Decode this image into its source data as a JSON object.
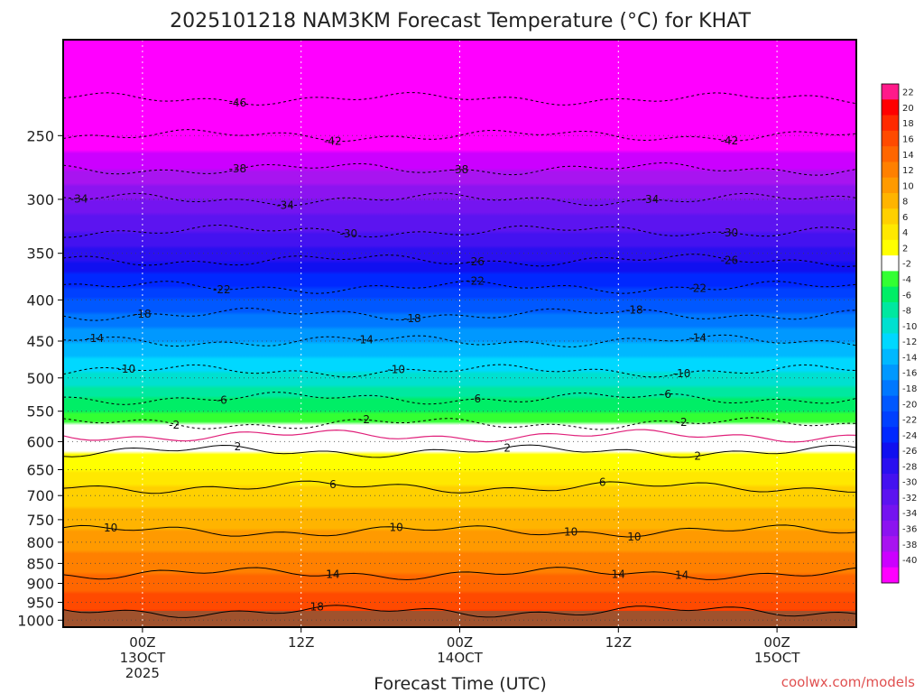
{
  "chart_data": {
    "type": "heatmap",
    "title": "2025101218 NAM3KM Forecast Temperature (°C) for KHAT",
    "xlabel": "Forecast Time (UTC)",
    "ylabel": "",
    "credit": "coolwx.com/models",
    "y_axis": {
      "units": "hPa",
      "ticks": [
        250,
        300,
        350,
        400,
        450,
        500,
        550,
        600,
        650,
        700,
        750,
        800,
        850,
        900,
        950,
        1000
      ],
      "range": [
        1020,
        190
      ]
    },
    "x_axis": {
      "units": "forecast hours",
      "range": [
        -5,
        45
      ],
      "ticks": [
        {
          "hour": 0,
          "lines": [
            "00Z",
            "13OCT",
            "2025"
          ]
        },
        {
          "hour": 10,
          "lines": [
            "12Z"
          ]
        },
        {
          "hour": 20,
          "lines": [
            "00Z",
            "14OCT"
          ]
        },
        {
          "hour": 30,
          "lines": [
            "12Z"
          ]
        },
        {
          "hour": 40,
          "lines": [
            "00Z",
            "15OCT"
          ]
        }
      ]
    },
    "colorbar": {
      "labels": [
        "22",
        "20",
        "18",
        "16",
        "14",
        "12",
        "10",
        "8",
        "6",
        "4",
        "2",
        "-2",
        "-4",
        "-6",
        "-8",
        "-10",
        "-12",
        "-14",
        "-16",
        "-18",
        "-20",
        "-22",
        "-24",
        "-26",
        "-28",
        "-30",
        "-32",
        "-34",
        "-36",
        "-38",
        "-40"
      ],
      "colors": [
        "#ff1a8a",
        "#ff0000",
        "#ff2a00",
        "#ff4a00",
        "#ff6600",
        "#ff8000",
        "#ff9a00",
        "#ffb400",
        "#ffd000",
        "#ffe800",
        "#ffff00",
        "#ffffff",
        "#33ff33",
        "#00ee66",
        "#00e8a0",
        "#00e0d0",
        "#00d8ff",
        "#00b8ff",
        "#0098ff",
        "#0078ff",
        "#0058ff",
        "#0040ff",
        "#0028ff",
        "#1010f0",
        "#2a10f0",
        "#4412f0",
        "#5c14f0",
        "#7414f0",
        "#8c14f0",
        "#a814f0",
        "#cc00ff",
        "#ff00ff"
      ]
    },
    "temperature_profile": [
      {
        "pressure": 200,
        "temp": -50
      },
      {
        "pressure": 250,
        "temp": -42
      },
      {
        "pressure": 300,
        "temp": -34
      },
      {
        "pressure": 350,
        "temp": -27
      },
      {
        "pressure": 400,
        "temp": -20
      },
      {
        "pressure": 450,
        "temp": -14
      },
      {
        "pressure": 500,
        "temp": -9
      },
      {
        "pressure": 550,
        "temp": -4
      },
      {
        "pressure": 600,
        "temp": 1
      },
      {
        "pressure": 650,
        "temp": 4
      },
      {
        "pressure": 700,
        "temp": 7
      },
      {
        "pressure": 750,
        "temp": 9
      },
      {
        "pressure": 800,
        "temp": 11
      },
      {
        "pressure": 850,
        "temp": 13
      },
      {
        "pressure": 900,
        "temp": 15
      },
      {
        "pressure": 950,
        "temp": 17
      },
      {
        "pressure": 1000,
        "temp": 19
      }
    ],
    "contours": [
      {
        "temp": -46,
        "dashed": true,
        "label_at_hour": 6
      },
      {
        "temp": -42,
        "dashed": true,
        "label_at_hour": 12
      },
      {
        "temp": -42,
        "dashed": true,
        "label_at_hour": 37
      },
      {
        "temp": -38,
        "dashed": true,
        "label_at_hour": 6
      },
      {
        "temp": -38,
        "dashed": true,
        "label_at_hour": 20
      },
      {
        "temp": -34,
        "dashed": true,
        "label_at_hour": 32
      },
      {
        "temp": -34,
        "dashed": true,
        "label_at_hour": 9
      },
      {
        "temp": -34,
        "dashed": true,
        "label_at_hour": -4
      },
      {
        "temp": -30,
        "dashed": true,
        "label_at_hour": 13
      },
      {
        "temp": -30,
        "dashed": true,
        "label_at_hour": 37
      },
      {
        "temp": -26,
        "dashed": true,
        "label_at_hour": 21
      },
      {
        "temp": -26,
        "dashed": true,
        "label_at_hour": 37
      },
      {
        "temp": -22,
        "dashed": true,
        "label_at_hour": 5
      },
      {
        "temp": -22,
        "dashed": true,
        "label_at_hour": 21
      },
      {
        "temp": -22,
        "dashed": true,
        "label_at_hour": 35
      },
      {
        "temp": -18,
        "dashed": true,
        "label_at_hour": 0
      },
      {
        "temp": -18,
        "dashed": true,
        "label_at_hour": 17
      },
      {
        "temp": -18,
        "dashed": true,
        "label_at_hour": 31
      },
      {
        "temp": -14,
        "dashed": true,
        "label_at_hour": -3
      },
      {
        "temp": -14,
        "dashed": true,
        "label_at_hour": 14
      },
      {
        "temp": -14,
        "dashed": true,
        "label_at_hour": 35
      },
      {
        "temp": -10,
        "dashed": true,
        "label_at_hour": -1
      },
      {
        "temp": -10,
        "dashed": true,
        "label_at_hour": 16
      },
      {
        "temp": -10,
        "dashed": true,
        "label_at_hour": 34
      },
      {
        "temp": -6,
        "dashed": true,
        "label_at_hour": 5
      },
      {
        "temp": -6,
        "dashed": true,
        "label_at_hour": 21
      },
      {
        "temp": -6,
        "dashed": true,
        "label_at_hour": 33
      },
      {
        "temp": -2,
        "dashed": true,
        "label_at_hour": 2
      },
      {
        "temp": -2,
        "dashed": true,
        "label_at_hour": 14
      },
      {
        "temp": -2,
        "dashed": true,
        "label_at_hour": 34
      },
      {
        "temp": 0,
        "dashed": false,
        "color": "#e0207a",
        "label_at_hour": null
      },
      {
        "temp": 2,
        "dashed": false,
        "label_at_hour": 6
      },
      {
        "temp": 2,
        "dashed": false,
        "label_at_hour": 23
      },
      {
        "temp": 2,
        "dashed": false,
        "label_at_hour": 35
      },
      {
        "temp": 6,
        "dashed": false,
        "label_at_hour": 12
      },
      {
        "temp": 6,
        "dashed": false,
        "label_at_hour": 29
      },
      {
        "temp": 10,
        "dashed": false,
        "label_at_hour": -2
      },
      {
        "temp": 10,
        "dashed": false,
        "label_at_hour": 16
      },
      {
        "temp": 10,
        "dashed": false,
        "label_at_hour": 31
      },
      {
        "temp": 10,
        "dashed": false,
        "label_at_hour": 27
      },
      {
        "temp": 14,
        "dashed": false,
        "label_at_hour": 12
      },
      {
        "temp": 14,
        "dashed": false,
        "label_at_hour": 12
      },
      {
        "temp": 14,
        "dashed": false,
        "label_at_hour": 34
      },
      {
        "temp": 14,
        "dashed": false,
        "label_at_hour": 30
      },
      {
        "temp": 18,
        "dashed": false,
        "label_at_hour": 11
      }
    ]
  }
}
